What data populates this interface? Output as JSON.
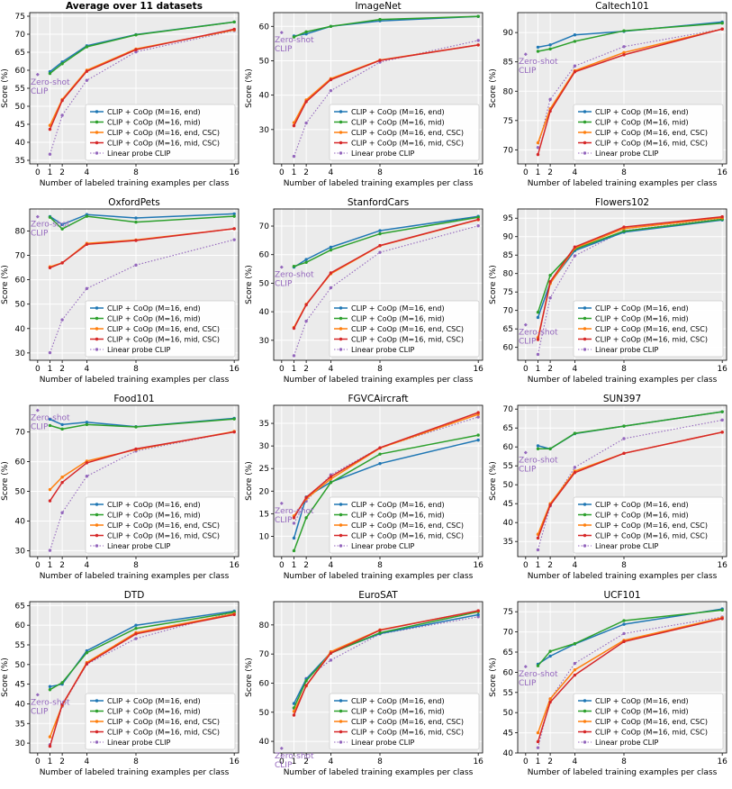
{
  "figure": {
    "legend_labels": [
      "CLIP + CoOp (M=16, end)",
      "CLIP + CoOp (M=16, mid)",
      "CLIP + CoOp (M=16, end, CSC)",
      "CLIP + CoOp (M=16, mid, CSC)",
      "Linear probe CLIP"
    ],
    "series_colors": [
      "#1f77b4",
      "#2ca02c",
      "#ff7f0e",
      "#d62728",
      "#9467bd"
    ],
    "zeroshot_label": [
      "Zero-shot",
      "CLIP"
    ],
    "xlabel": "Number of labeled training examples per class",
    "ylabel": "Score (%)"
  },
  "chart_data": [
    {
      "type": "line",
      "title": "Average over 11 datasets",
      "title_bold": true,
      "x": [
        1,
        2,
        4,
        8,
        16
      ],
      "xticks": [
        0,
        1,
        2,
        4,
        8,
        16
      ],
      "ylim": [
        34,
        76
      ],
      "yticks": [
        35,
        40,
        45,
        50,
        55,
        60,
        65,
        70,
        75
      ],
      "zeroshot": 58.8,
      "series": [
        {
          "name": "CLIP + CoOp (M=16, end)",
          "values": [
            59.6,
            62.3,
            66.8,
            69.9,
            73.4
          ]
        },
        {
          "name": "CLIP + CoOp (M=16, mid)",
          "values": [
            59.1,
            61.8,
            66.5,
            69.8,
            73.4
          ]
        },
        {
          "name": "CLIP + CoOp (M=16, end, CSC)",
          "values": [
            44.7,
            51.9,
            60.0,
            65.9,
            71.2
          ]
        },
        {
          "name": "CLIP + CoOp (M=16, mid, CSC)",
          "values": [
            43.6,
            51.6,
            59.7,
            65.7,
            71.4
          ]
        },
        {
          "name": "Linear probe CLIP",
          "values": [
            36.7,
            47.5,
            57.2,
            65.1,
            71.0
          ]
        }
      ]
    },
    {
      "type": "line",
      "title": "ImageNet",
      "x": [
        1,
        2,
        4,
        8,
        16
      ],
      "xticks": [
        0,
        1,
        2,
        4,
        8,
        16
      ],
      "ylim": [
        20,
        64
      ],
      "yticks": [
        30,
        40,
        50,
        60
      ],
      "zeroshot": 58.2,
      "series": [
        {
          "name": "CLIP + CoOp (M=16, end)",
          "values": [
            57.2,
            57.8,
            60.0,
            61.6,
            62.9
          ]
        },
        {
          "name": "CLIP + CoOp (M=16, mid)",
          "values": [
            56.9,
            58.4,
            60.0,
            62.0,
            62.9
          ]
        },
        {
          "name": "CLIP + CoOp (M=16, end, CSC)",
          "values": [
            32.0,
            38.6,
            44.8,
            50.2,
            54.6
          ]
        },
        {
          "name": "CLIP + CoOp (M=16, mid, CSC)",
          "values": [
            31.1,
            38.1,
            44.5,
            50.1,
            54.6
          ]
        },
        {
          "name": "Linear probe CLIP",
          "values": [
            22.2,
            31.9,
            41.3,
            49.6,
            55.9
          ]
        }
      ]
    },
    {
      "type": "line",
      "title": "Caltech101",
      "x": [
        1,
        2,
        4,
        8,
        16
      ],
      "xticks": [
        0,
        1,
        2,
        4,
        8,
        16
      ],
      "ylim": [
        67.6,
        93.4
      ],
      "yticks": [
        70,
        75,
        80,
        85,
        90
      ],
      "zeroshot": 86.3,
      "series": [
        {
          "name": "CLIP + CoOp (M=16, end)",
          "values": [
            87.5,
            87.9,
            89.6,
            90.2,
            91.8
          ]
        },
        {
          "name": "CLIP + CoOp (M=16, mid)",
          "values": [
            86.8,
            87.2,
            88.5,
            90.3,
            91.6
          ]
        },
        {
          "name": "CLIP + CoOp (M=16, end, CSC)",
          "values": [
            71.2,
            77.0,
            83.5,
            86.6,
            90.6
          ]
        },
        {
          "name": "CLIP + CoOp (M=16, mid, CSC)",
          "values": [
            69.2,
            76.6,
            83.3,
            86.2,
            90.6
          ]
        },
        {
          "name": "Linear probe CLIP",
          "values": [
            70.4,
            78.6,
            84.3,
            87.6,
            90.6
          ]
        }
      ]
    },
    {
      "type": "line",
      "title": "OxfordPets",
      "x": [
        1,
        2,
        4,
        8,
        16
      ],
      "xticks": [
        0,
        1,
        2,
        4,
        8,
        16
      ],
      "ylim": [
        27,
        89
      ],
      "yticks": [
        30,
        40,
        50,
        60,
        70,
        80
      ],
      "zeroshot": 85.8,
      "series": [
        {
          "name": "CLIP + CoOp (M=16, end)",
          "values": [
            85.9,
            82.6,
            86.7,
            85.3,
            87.0
          ]
        },
        {
          "name": "CLIP + CoOp (M=16, mid)",
          "values": [
            85.6,
            80.8,
            86.0,
            83.6,
            86.0
          ]
        },
        {
          "name": "CLIP + CoOp (M=16, end, CSC)",
          "values": [
            65.3,
            66.9,
            74.9,
            76.3,
            80.9
          ]
        },
        {
          "name": "CLIP + CoOp (M=16, mid, CSC)",
          "values": [
            64.9,
            66.9,
            74.5,
            76.1,
            80.9
          ]
        },
        {
          "name": "Linear probe CLIP",
          "values": [
            30.1,
            43.6,
            56.4,
            66.0,
            76.4
          ]
        }
      ]
    },
    {
      "type": "line",
      "title": "StanfordCars",
      "x": [
        1,
        2,
        4,
        8,
        16
      ],
      "xticks": [
        0,
        1,
        2,
        4,
        8,
        16
      ],
      "ylim": [
        23,
        76
      ],
      "yticks": [
        30,
        40,
        50,
        60,
        70
      ],
      "zeroshot": 55.6,
      "series": [
        {
          "name": "CLIP + CoOp (M=16, end)",
          "values": [
            55.6,
            58.3,
            62.6,
            68.4,
            73.4
          ]
        },
        {
          "name": "CLIP + CoOp (M=16, mid)",
          "values": [
            55.9,
            57.3,
            61.6,
            67.3,
            73.1
          ]
        },
        {
          "name": "CLIP + CoOp (M=16, end, CSC)",
          "values": [
            34.5,
            42.6,
            53.3,
            63.1,
            72.2
          ]
        },
        {
          "name": "CLIP + CoOp (M=16, mid, CSC)",
          "values": [
            34.2,
            42.4,
            53.6,
            63.2,
            72.3
          ]
        },
        {
          "name": "Linear probe CLIP",
          "values": [
            24.6,
            36.7,
            48.4,
            60.8,
            70.1
          ]
        }
      ]
    },
    {
      "type": "line",
      "title": "Flowers102",
      "x": [
        1,
        2,
        4,
        8,
        16
      ],
      "xticks": [
        0,
        1,
        2,
        4,
        8,
        16
      ],
      "ylim": [
        56.5,
        97.5
      ],
      "yticks": [
        60,
        65,
        70,
        75,
        80,
        85,
        90,
        95
      ],
      "zeroshot": 66.1,
      "series": [
        {
          "name": "CLIP + CoOp (M=16, end)",
          "values": [
            68.1,
            77.5,
            86.2,
            91.2,
            94.5
          ]
        },
        {
          "name": "CLIP + CoOp (M=16, mid)",
          "values": [
            69.5,
            79.5,
            86.6,
            91.5,
            94.7
          ]
        },
        {
          "name": "CLIP + CoOp (M=16, end, CSC)",
          "values": [
            62.6,
            77.3,
            86.9,
            92.2,
            95.1
          ]
        },
        {
          "name": "CLIP + CoOp (M=16, mid, CSC)",
          "values": [
            62.1,
            77.8,
            87.2,
            92.6,
            95.4
          ]
        },
        {
          "name": "Linear probe CLIP",
          "values": [
            58.1,
            73.4,
            84.8,
            91.6,
            94.9
          ]
        }
      ]
    },
    {
      "type": "line",
      "title": "Food101",
      "x": [
        1,
        2,
        4,
        8,
        16
      ],
      "xticks": [
        0,
        1,
        2,
        4,
        8,
        16
      ],
      "ylim": [
        28,
        79
      ],
      "yticks": [
        30,
        40,
        50,
        60,
        70
      ],
      "zeroshot": 77.3,
      "series": [
        {
          "name": "CLIP + CoOp (M=16, end)",
          "values": [
            74.3,
            72.5,
            73.3,
            71.8,
            74.6
          ]
        },
        {
          "name": "CLIP + CoOp (M=16, mid)",
          "values": [
            72.2,
            71.0,
            72.5,
            71.7,
            74.4
          ]
        },
        {
          "name": "CLIP + CoOp (M=16, end, CSC)",
          "values": [
            50.6,
            54.8,
            60.2,
            64.1,
            70.2
          ]
        },
        {
          "name": "CLIP + CoOp (M=16, mid, CSC)",
          "values": [
            46.8,
            53.0,
            59.6,
            64.3,
            70.0
          ]
        },
        {
          "name": "Linear probe CLIP",
          "values": [
            30.1,
            42.8,
            55.1,
            63.6,
            70.1
          ]
        }
      ]
    },
    {
      "type": "line",
      "title": "FGVCAircraft",
      "x": [
        1,
        2,
        4,
        8,
        16
      ],
      "xticks": [
        0,
        1,
        2,
        4,
        8,
        16
      ],
      "ylim": [
        5.5,
        39
      ],
      "yticks": [
        10,
        15,
        20,
        25,
        30,
        35
      ],
      "zeroshot": 17.3,
      "series": [
        {
          "name": "CLIP + CoOp (M=16, end)",
          "values": [
            9.6,
            18.7,
            22.0,
            26.1,
            31.3
          ]
        },
        {
          "name": "CLIP + CoOp (M=16, mid)",
          "values": [
            6.8,
            14.1,
            21.9,
            28.2,
            32.4
          ]
        },
        {
          "name": "CLIP + CoOp (M=16, end, CSC)",
          "values": [
            14.5,
            18.3,
            22.7,
            29.5,
            37.0
          ]
        },
        {
          "name": "CLIP + CoOp (M=16, mid, CSC)",
          "values": [
            14.1,
            18.6,
            23.2,
            29.6,
            37.4
          ]
        },
        {
          "name": "Linear probe CLIP",
          "values": [
            12.9,
            17.8,
            23.6,
            29.6,
            36.4
          ]
        }
      ]
    },
    {
      "type": "line",
      "title": "SUN397",
      "x": [
        1,
        2,
        4,
        8,
        16
      ],
      "xticks": [
        0,
        1,
        2,
        4,
        8,
        16
      ],
      "ylim": [
        31,
        71
      ],
      "yticks": [
        35,
        40,
        45,
        50,
        55,
        60,
        65,
        70
      ],
      "zeroshot": 58.5,
      "series": [
        {
          "name": "CLIP + CoOp (M=16, end)",
          "values": [
            60.3,
            59.5,
            63.5,
            65.5,
            69.3
          ]
        },
        {
          "name": "CLIP + CoOp (M=16, mid)",
          "values": [
            59.5,
            59.5,
            63.6,
            65.5,
            69.3
          ]
        },
        {
          "name": "CLIP + CoOp (M=16, end, CSC)",
          "values": [
            36.9,
            45.0,
            53.6,
            58.3,
            63.9
          ]
        },
        {
          "name": "CLIP + CoOp (M=16, mid, CSC)",
          "values": [
            35.9,
            44.6,
            53.2,
            58.3,
            63.9
          ]
        },
        {
          "name": "Linear probe CLIP",
          "values": [
            32.8,
            44.4,
            54.6,
            62.2,
            67.1
          ]
        }
      ]
    },
    {
      "type": "line",
      "title": "DTD",
      "x": [
        1,
        2,
        4,
        8,
        16
      ],
      "xticks": [
        0,
        1,
        2,
        4,
        8,
        16
      ],
      "ylim": [
        27.5,
        66
      ],
      "yticks": [
        30,
        35,
        40,
        45,
        50,
        55,
        60,
        65
      ],
      "zeroshot": 42.3,
      "series": [
        {
          "name": "CLIP + CoOp (M=16, end)",
          "values": [
            44.4,
            45.0,
            53.5,
            60.0,
            63.6
          ]
        },
        {
          "name": "CLIP + CoOp (M=16, mid)",
          "values": [
            43.6,
            45.4,
            53.0,
            59.2,
            63.3
          ]
        },
        {
          "name": "CLIP + CoOp (M=16, end, CSC)",
          "values": [
            31.6,
            39.6,
            50.5,
            58.1,
            62.9
          ]
        },
        {
          "name": "CLIP + CoOp (M=16, mid, CSC)",
          "values": [
            29.2,
            39.8,
            50.2,
            57.8,
            62.7
          ]
        },
        {
          "name": "Linear probe CLIP",
          "values": [
            29.6,
            39.4,
            50.1,
            56.6,
            63.4
          ]
        }
      ]
    },
    {
      "type": "line",
      "title": "EuroSAT",
      "x": [
        1,
        2,
        4,
        8,
        16
      ],
      "xticks": [
        0,
        1,
        2,
        4,
        8,
        16
      ],
      "ylim": [
        36,
        88
      ],
      "yticks": [
        40,
        50,
        60,
        70,
        80
      ],
      "zeroshot": 37.6,
      "series": [
        {
          "name": "CLIP + CoOp (M=16, end)",
          "values": [
            53.0,
            61.4,
            70.5,
            77.0,
            83.5
          ]
        },
        {
          "name": "CLIP + CoOp (M=16, mid)",
          "values": [
            51.5,
            60.8,
            70.3,
            77.3,
            84.5
          ]
        },
        {
          "name": "CLIP + CoOp (M=16, end, CSC)",
          "values": [
            50.3,
            59.0,
            70.8,
            78.3,
            84.8
          ]
        },
        {
          "name": "CLIP + CoOp (M=16, mid, CSC)",
          "values": [
            49.0,
            59.2,
            70.3,
            78.2,
            84.9
          ]
        },
        {
          "name": "Linear probe CLIP",
          "values": [
            51.4,
            61.6,
            67.9,
            76.9,
            82.8
          ]
        }
      ]
    },
    {
      "type": "line",
      "title": "UCF101",
      "x": [
        1,
        2,
        4,
        8,
        16
      ],
      "xticks": [
        0,
        1,
        2,
        4,
        8,
        16
      ],
      "ylim": [
        40,
        77.5
      ],
      "yticks": [
        40,
        45,
        50,
        55,
        60,
        65,
        70,
        75
      ],
      "zeroshot": 61.4,
      "series": [
        {
          "name": "CLIP + CoOp (M=16, end)",
          "values": [
            62.0,
            64.0,
            67.0,
            71.9,
            75.7
          ]
        },
        {
          "name": "CLIP + CoOp (M=16, mid)",
          "values": [
            61.6,
            65.2,
            67.1,
            72.8,
            75.4
          ]
        },
        {
          "name": "CLIP + CoOp (M=16, end, CSC)",
          "values": [
            45.0,
            53.4,
            60.6,
            67.9,
            73.5
          ]
        },
        {
          "name": "CLIP + CoOp (M=16, mid, CSC)",
          "values": [
            42.8,
            52.6,
            59.3,
            67.6,
            73.3
          ]
        },
        {
          "name": "Linear probe CLIP",
          "values": [
            41.3,
            53.4,
            62.2,
            69.6,
            73.7
          ]
        }
      ]
    }
  ]
}
